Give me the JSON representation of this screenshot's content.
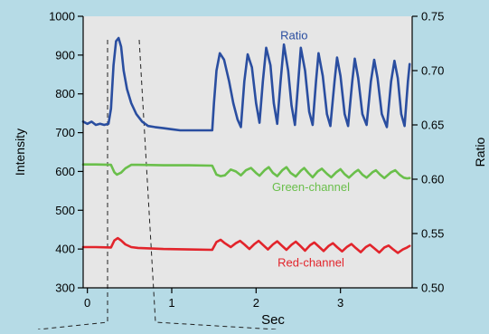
{
  "chart_data": {
    "type": "line",
    "title": "",
    "xlabel": "Sec",
    "ylabel_left": "Intensity",
    "ylabel_right": "Ratio",
    "x_range": [
      -0.05,
      3.85
    ],
    "y_left_range": [
      300,
      1000
    ],
    "y_right_range": [
      0.5,
      0.75
    ],
    "x_ticks": [
      0,
      1,
      2,
      3
    ],
    "x_tick_labels": [
      "0",
      "1",
      "2",
      "3"
    ],
    "y_left_ticks": [
      300,
      400,
      500,
      600,
      700,
      800,
      900,
      1000
    ],
    "y_left_tick_labels": [
      "300",
      "400",
      "500",
      "600",
      "700",
      "800",
      "900",
      "1000"
    ],
    "y_right_ticks": [
      0.5,
      0.55,
      0.6,
      0.65,
      0.7,
      0.75
    ],
    "y_right_tick_labels": [
      "0.50",
      "0.55",
      "0.60",
      "0.65",
      "0.70",
      "0.75"
    ],
    "grid": false,
    "colors": {
      "plot_background": "#e6e6e6",
      "page_background": "#b6dbe6",
      "ratio": "#2a4ea0",
      "green": "#6abf4b",
      "red": "#e2242b",
      "axis": "#000000"
    },
    "series": [
      {
        "name": "Ratio",
        "axis": "right",
        "color": "#2a4ea0",
        "points": [
          [
            -0.05,
            0.653
          ],
          [
            0.0,
            0.651
          ],
          [
            0.05,
            0.653
          ],
          [
            0.1,
            0.65
          ],
          [
            0.15,
            0.651
          ],
          [
            0.2,
            0.65
          ],
          [
            0.25,
            0.651
          ],
          [
            0.28,
            0.665
          ],
          [
            0.31,
            0.705
          ],
          [
            0.34,
            0.727
          ],
          [
            0.37,
            0.73
          ],
          [
            0.4,
            0.722
          ],
          [
            0.43,
            0.7
          ],
          [
            0.47,
            0.683
          ],
          [
            0.52,
            0.67
          ],
          [
            0.58,
            0.66
          ],
          [
            0.65,
            0.653
          ],
          [
            0.72,
            0.649
          ],
          [
            0.8,
            0.648
          ],
          [
            0.9,
            0.647
          ],
          [
            1.0,
            0.646
          ],
          [
            1.1,
            0.645
          ],
          [
            1.2,
            0.645
          ],
          [
            1.3,
            0.645
          ],
          [
            1.4,
            0.645
          ],
          [
            1.48,
            0.645
          ],
          [
            1.5,
            0.67
          ],
          [
            1.53,
            0.7
          ],
          [
            1.57,
            0.716
          ],
          [
            1.62,
            0.71
          ],
          [
            1.68,
            0.69
          ],
          [
            1.73,
            0.67
          ],
          [
            1.78,
            0.655
          ],
          [
            1.82,
            0.648
          ],
          [
            1.86,
            0.69
          ],
          [
            1.9,
            0.715
          ],
          [
            1.95,
            0.703
          ],
          [
            2.0,
            0.67
          ],
          [
            2.04,
            0.652
          ],
          [
            2.08,
            0.69
          ],
          [
            2.12,
            0.721
          ],
          [
            2.17,
            0.705
          ],
          [
            2.21,
            0.67
          ],
          [
            2.25,
            0.651
          ],
          [
            2.29,
            0.69
          ],
          [
            2.33,
            0.724
          ],
          [
            2.38,
            0.7
          ],
          [
            2.42,
            0.668
          ],
          [
            2.46,
            0.65
          ],
          [
            2.5,
            0.69
          ],
          [
            2.53,
            0.721
          ],
          [
            2.58,
            0.7
          ],
          [
            2.63,
            0.662
          ],
          [
            2.67,
            0.65
          ],
          [
            2.71,
            0.69
          ],
          [
            2.74,
            0.716
          ],
          [
            2.79,
            0.695
          ],
          [
            2.84,
            0.66
          ],
          [
            2.88,
            0.649
          ],
          [
            2.93,
            0.69
          ],
          [
            2.96,
            0.712
          ],
          [
            3.0,
            0.695
          ],
          [
            3.05,
            0.66
          ],
          [
            3.09,
            0.649
          ],
          [
            3.14,
            0.69
          ],
          [
            3.17,
            0.711
          ],
          [
            3.21,
            0.693
          ],
          [
            3.26,
            0.66
          ],
          [
            3.31,
            0.65
          ],
          [
            3.36,
            0.69
          ],
          [
            3.4,
            0.71
          ],
          [
            3.44,
            0.693
          ],
          [
            3.49,
            0.66
          ],
          [
            3.55,
            0.648
          ],
          [
            3.6,
            0.69
          ],
          [
            3.64,
            0.709
          ],
          [
            3.68,
            0.693
          ],
          [
            3.72,
            0.66
          ],
          [
            3.76,
            0.649
          ],
          [
            3.8,
            0.69
          ],
          [
            3.82,
            0.706
          ]
        ]
      },
      {
        "name": "Green-channel",
        "axis": "left",
        "color": "#6abf4b",
        "points": [
          [
            -0.05,
            618
          ],
          [
            0.1,
            618
          ],
          [
            0.28,
            617
          ],
          [
            0.32,
            598
          ],
          [
            0.35,
            592
          ],
          [
            0.4,
            597
          ],
          [
            0.45,
            608
          ],
          [
            0.52,
            617
          ],
          [
            0.6,
            617
          ],
          [
            0.9,
            616
          ],
          [
            1.2,
            616
          ],
          [
            1.48,
            615
          ],
          [
            1.53,
            592
          ],
          [
            1.58,
            588
          ],
          [
            1.63,
            590
          ],
          [
            1.7,
            605
          ],
          [
            1.76,
            600
          ],
          [
            1.82,
            590
          ],
          [
            1.88,
            603
          ],
          [
            1.94,
            609
          ],
          [
            2.0,
            596
          ],
          [
            2.04,
            589
          ],
          [
            2.1,
            603
          ],
          [
            2.15,
            611
          ],
          [
            2.2,
            596
          ],
          [
            2.25,
            588
          ],
          [
            2.31,
            603
          ],
          [
            2.36,
            611
          ],
          [
            2.41,
            596
          ],
          [
            2.47,
            587
          ],
          [
            2.53,
            602
          ],
          [
            2.57,
            609
          ],
          [
            2.62,
            596
          ],
          [
            2.67,
            585
          ],
          [
            2.73,
            600
          ],
          [
            2.78,
            607
          ],
          [
            2.84,
            594
          ],
          [
            2.89,
            585
          ],
          [
            2.95,
            598
          ],
          [
            3.0,
            606
          ],
          [
            3.05,
            593
          ],
          [
            3.1,
            584
          ],
          [
            3.17,
            598
          ],
          [
            3.21,
            604
          ],
          [
            3.26,
            592
          ],
          [
            3.31,
            584
          ],
          [
            3.38,
            598
          ],
          [
            3.42,
            603
          ],
          [
            3.47,
            592
          ],
          [
            3.52,
            583
          ],
          [
            3.6,
            598
          ],
          [
            3.65,
            603
          ],
          [
            3.7,
            592
          ],
          [
            3.75,
            584
          ],
          [
            3.79,
            582
          ],
          [
            3.82,
            583
          ]
        ]
      },
      {
        "name": "Red-channel",
        "axis": "left",
        "color": "#e2242b",
        "points": [
          [
            -0.05,
            405
          ],
          [
            0.1,
            405
          ],
          [
            0.28,
            404
          ],
          [
            0.32,
            422
          ],
          [
            0.36,
            428
          ],
          [
            0.4,
            422
          ],
          [
            0.45,
            412
          ],
          [
            0.52,
            405
          ],
          [
            0.6,
            403
          ],
          [
            0.9,
            400
          ],
          [
            1.2,
            399
          ],
          [
            1.48,
            398
          ],
          [
            1.53,
            418
          ],
          [
            1.58,
            424
          ],
          [
            1.63,
            415
          ],
          [
            1.7,
            405
          ],
          [
            1.76,
            415
          ],
          [
            1.81,
            421
          ],
          [
            1.86,
            412
          ],
          [
            1.92,
            400
          ],
          [
            1.98,
            413
          ],
          [
            2.03,
            421
          ],
          [
            2.08,
            411
          ],
          [
            2.14,
            399
          ],
          [
            2.2,
            412
          ],
          [
            2.25,
            420
          ],
          [
            2.3,
            410
          ],
          [
            2.36,
            398
          ],
          [
            2.42,
            411
          ],
          [
            2.47,
            419
          ],
          [
            2.52,
            409
          ],
          [
            2.58,
            396
          ],
          [
            2.64,
            410
          ],
          [
            2.69,
            417
          ],
          [
            2.74,
            407
          ],
          [
            2.8,
            395
          ],
          [
            2.86,
            408
          ],
          [
            2.91,
            415
          ],
          [
            2.96,
            405
          ],
          [
            3.02,
            394
          ],
          [
            3.08,
            406
          ],
          [
            3.13,
            413
          ],
          [
            3.18,
            403
          ],
          [
            3.24,
            392
          ],
          [
            3.3,
            405
          ],
          [
            3.35,
            411
          ],
          [
            3.4,
            402
          ],
          [
            3.46,
            391
          ],
          [
            3.52,
            404
          ],
          [
            3.57,
            409
          ],
          [
            3.62,
            400
          ],
          [
            3.68,
            390
          ],
          [
            3.74,
            399
          ],
          [
            3.79,
            404
          ],
          [
            3.82,
            408
          ]
        ]
      }
    ],
    "annotations": [
      {
        "text": "Ratio",
        "series": "Ratio",
        "x": 2.45,
        "y_left": 940,
        "color": "#2a4ea0"
      },
      {
        "text": "Green-channel",
        "series": "Green-channel",
        "x": 2.65,
        "y_left": 550,
        "color": "#6abf4b"
      },
      {
        "text": "Red-channel",
        "series": "Red-channel",
        "x": 2.65,
        "y_left": 355,
        "color": "#e2242b"
      }
    ]
  }
}
